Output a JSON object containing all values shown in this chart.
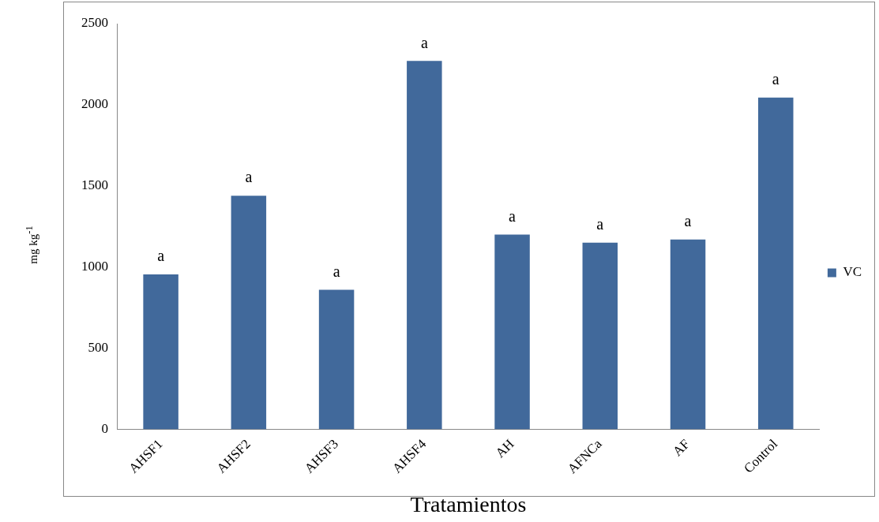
{
  "chart_data": {
    "type": "bar",
    "xlabel": "Tratamientos",
    "ylabel": "mg kg$^{-1}$",
    "categories": [
      "AHSF1",
      "AHSF2",
      "AHSF3",
      "AHSF4",
      "AH",
      "AFNCa",
      "AF",
      "Control"
    ],
    "series": [
      {
        "name": "VC",
        "color": "#41699b",
        "values": [
          955,
          1440,
          860,
          2270,
          1200,
          1150,
          1170,
          2045
        ]
      }
    ],
    "ylim": [
      0,
      2500
    ],
    "yticks": [
      0,
      500,
      1000,
      1500,
      2000,
      2500
    ],
    "grid": false,
    "legend": "right",
    "annotations": [
      {
        "text": "a",
        "x": "AHSF1",
        "y": 955
      },
      {
        "text": "a",
        "x": "AHSF2",
        "y": 1440
      },
      {
        "text": "a",
        "x": "AHSF3",
        "y": 860
      },
      {
        "text": "a",
        "x": "AHSF4",
        "y": 2270
      },
      {
        "text": "a",
        "x": "AH",
        "y": 1200
      },
      {
        "text": "a",
        "x": "AFNCa",
        "y": 1150
      },
      {
        "text": "a",
        "x": "AF",
        "y": 1170
      },
      {
        "text": "a",
        "x": "Control",
        "y": 2045
      }
    ]
  }
}
